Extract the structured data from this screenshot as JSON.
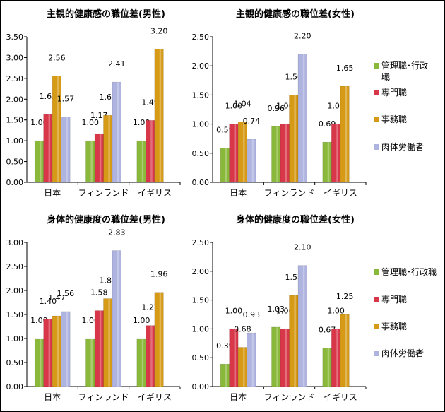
{
  "colors": {
    "manager": "#8ab83a",
    "professional": "#d8374a",
    "clerical": "#d69a16",
    "manual": "#aeb3e0"
  },
  "chart_data": [
    {
      "type": "bar",
      "title": "主観的健康感の職位差(男性)",
      "categories": [
        "日本",
        "フィンランド",
        "イギリス"
      ],
      "ylim": [
        0,
        3.5
      ],
      "yticks": [
        "0.00",
        "0.50",
        "1.00",
        "1.50",
        "2.00",
        "2.50",
        "3.00",
        "3.50"
      ],
      "grid": false,
      "series": [
        {
          "name": "管理職･行政職",
          "values": [
            1.0,
            1.0,
            1.0
          ],
          "labels": [
            "1.00",
            "1.00",
            "1.00"
          ]
        },
        {
          "name": "専門職",
          "values": [
            1.63,
            1.17,
            1.49
          ],
          "labels": [
            "1.63",
            "1.17",
            "1.49"
          ]
        },
        {
          "name": "事務職",
          "values": [
            2.56,
            1.61,
            3.2
          ],
          "labels": [
            "2.56",
            "1.61",
            "3.20"
          ]
        },
        {
          "name": "肉体労働者",
          "values": [
            1.57,
            2.41,
            null
          ],
          "labels": [
            "1.57",
            "2.41",
            ""
          ]
        }
      ]
    },
    {
      "type": "bar",
      "title": "主観的健康感の職位差(女性)",
      "categories": [
        "日本",
        "フィンランド",
        "イギリス"
      ],
      "ylim": [
        0,
        2.5
      ],
      "yticks": [
        "0.00",
        "0.50",
        "1.00",
        "1.50",
        "2.00",
        "2.50"
      ],
      "grid": false,
      "legend_position": "right",
      "legend": [
        "管理職･行政職",
        "専門職",
        "事務職",
        "肉体労働者"
      ],
      "series": [
        {
          "name": "管理職･行政職",
          "values": [
            0.59,
            0.96,
            0.69
          ],
          "labels": [
            "0.59",
            "0.96",
            "0.69"
          ]
        },
        {
          "name": "専門職",
          "values": [
            1.0,
            1.0,
            1.0
          ],
          "labels": [
            "1.00",
            "1.00",
            "1.00"
          ]
        },
        {
          "name": "事務職",
          "values": [
            1.04,
            1.5,
            1.65
          ],
          "labels": [
            "1.04",
            "1.50",
            "1.65"
          ]
        },
        {
          "name": "肉体労働者",
          "values": [
            0.74,
            2.2,
            null
          ],
          "labels": [
            "0.74",
            "2.20",
            ""
          ]
        }
      ]
    },
    {
      "type": "bar",
      "title": "身体的健康度の職位差(男性)",
      "categories": [
        "日本",
        "フィンランド",
        "イギリス"
      ],
      "ylim": [
        0,
        3.0
      ],
      "yticks": [
        "0.00",
        "0.50",
        "1.00",
        "1.50",
        "2.00",
        "2.50",
        "3.00"
      ],
      "grid": false,
      "series": [
        {
          "name": "管理職･行政職",
          "values": [
            1.0,
            1.0,
            1.0
          ],
          "labels": [
            "1.00",
            "1.00",
            "1.00"
          ]
        },
        {
          "name": "専門職",
          "values": [
            1.4,
            1.58,
            1.27
          ],
          "labels": [
            "1.40",
            "1.58",
            "1.27"
          ]
        },
        {
          "name": "事務職",
          "values": [
            1.47,
            1.83,
            1.96
          ],
          "labels": [
            "1.47",
            "1.83",
            "1.96"
          ]
        },
        {
          "name": "肉体労働者",
          "values": [
            1.56,
            2.83,
            null
          ],
          "labels": [
            "1.56",
            "2.83",
            ""
          ]
        }
      ]
    },
    {
      "type": "bar",
      "title": "身体的健康度の職位差(女性)",
      "categories": [
        "日本",
        "フィンランド",
        "イギリス"
      ],
      "ylim": [
        0,
        2.5
      ],
      "yticks": [
        "0.00",
        "0.50",
        "1.00",
        "1.50",
        "2.00",
        "2.50"
      ],
      "grid": false,
      "legend_position": "right",
      "legend": [
        "管理職･行政職",
        "専門職",
        "事務職",
        "肉体労働者"
      ],
      "series": [
        {
          "name": "管理職･行政職",
          "values": [
            0.39,
            1.03,
            0.67
          ],
          "labels": [
            "0.39",
            "1.03",
            "0.67"
          ]
        },
        {
          "name": "専門職",
          "values": [
            1.0,
            1.0,
            1.0
          ],
          "labels": [
            "1.00",
            "1.00",
            "1.00"
          ]
        },
        {
          "name": "事務職",
          "values": [
            0.68,
            1.58,
            1.25
          ],
          "labels": [
            "0.68",
            "1.58",
            "1.25"
          ]
        },
        {
          "name": "肉体労働者",
          "values": [
            0.93,
            2.1,
            null
          ],
          "labels": [
            "0.93",
            "2.10",
            ""
          ]
        }
      ]
    }
  ]
}
